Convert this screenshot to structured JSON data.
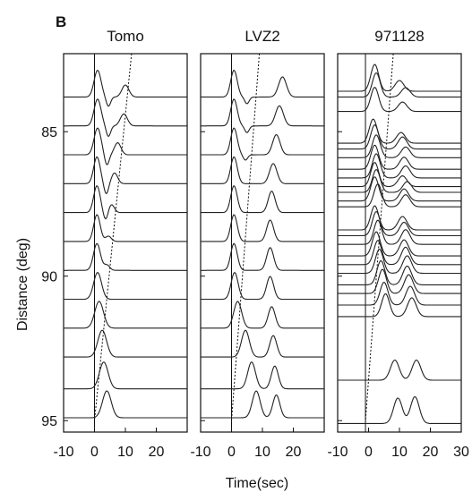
{
  "panel_label": "B",
  "chart_data": {
    "type": "line",
    "subtype": "seismogram record section",
    "xlabel": "Time(sec)",
    "ylabel": "Distance (deg)",
    "ylim": [
      95.4,
      82.3
    ],
    "y_ticks": [
      85,
      90,
      95
    ],
    "y_tick_labels": [
      "85",
      "90",
      "95"
    ],
    "panels": [
      {
        "title": "Tomo",
        "xlim": [
          -10,
          30
        ],
        "x_ticks": [
          -10,
          0,
          10,
          20
        ],
        "x_tick_labels": [
          "-10",
          "0",
          "10",
          "20"
        ],
        "reference_line_time": 0,
        "dotted_line": [
          {
            "distance": 82.3,
            "time": 12
          },
          {
            "distance": 95.0,
            "time": 0
          }
        ],
        "traces": [
          {
            "distance": 83.8,
            "pulses": [
              {
                "t": 1.0,
                "a": 1.0,
                "w": 1.6
              },
              {
                "t": 4.5,
                "a": -0.35,
                "w": 1.0
              },
              {
                "t": 10.0,
                "a": 0.45,
                "w": 1.6
              }
            ]
          },
          {
            "distance": 84.8,
            "pulses": [
              {
                "t": 1.0,
                "a": 1.0,
                "w": 1.6
              },
              {
                "t": 4.5,
                "a": -0.4,
                "w": 1.0
              },
              {
                "t": 9.5,
                "a": 0.45,
                "w": 1.6
              }
            ]
          },
          {
            "distance": 85.8,
            "pulses": [
              {
                "t": 1.0,
                "a": 1.0,
                "w": 1.6
              },
              {
                "t": 4.0,
                "a": -0.4,
                "w": 1.0
              },
              {
                "t": 7.5,
                "a": 0.45,
                "w": 1.5
              }
            ]
          },
          {
            "distance": 86.8,
            "pulses": [
              {
                "t": 0.8,
                "a": 1.0,
                "w": 1.5
              },
              {
                "t": 3.8,
                "a": -0.4,
                "w": 1.0
              },
              {
                "t": 6.5,
                "a": 0.4,
                "w": 1.4
              }
            ]
          },
          {
            "distance": 87.8,
            "pulses": [
              {
                "t": 0.8,
                "a": 1.0,
                "w": 1.5
              },
              {
                "t": 3.6,
                "a": -0.3,
                "w": 1.0
              },
              {
                "t": 5.5,
                "a": 0.3,
                "w": 1.3
              }
            ]
          },
          {
            "distance": 88.8,
            "pulses": [
              {
                "t": 0.8,
                "a": 1.0,
                "w": 1.5
              },
              {
                "t": 4.5,
                "a": 0.2,
                "w": 1.3
              }
            ]
          },
          {
            "distance": 89.8,
            "pulses": [
              {
                "t": 0.8,
                "a": 1.0,
                "w": 1.6
              },
              {
                "t": 4.0,
                "a": 0.2,
                "w": 1.3
              }
            ]
          },
          {
            "distance": 90.8,
            "pulses": [
              {
                "t": 1.0,
                "a": 1.0,
                "w": 1.8
              }
            ]
          },
          {
            "distance": 91.8,
            "pulses": [
              {
                "t": 1.5,
                "a": 1.0,
                "w": 2.0
              }
            ]
          },
          {
            "distance": 92.8,
            "pulses": [
              {
                "t": 2.5,
                "a": 1.0,
                "w": 2.0
              }
            ]
          },
          {
            "distance": 93.9,
            "pulses": [
              {
                "t": 3.0,
                "a": 1.0,
                "w": 2.0
              }
            ]
          },
          {
            "distance": 94.9,
            "pulses": [
              {
                "t": 4.0,
                "a": 1.0,
                "w": 2.0
              }
            ]
          }
        ]
      },
      {
        "title": "LVZ2",
        "xlim": [
          -10,
          30
        ],
        "x_ticks": [
          -10,
          0,
          10,
          20
        ],
        "x_tick_labels": [
          "-10",
          "0",
          "10",
          "20"
        ],
        "reference_line_time": 0,
        "dotted_line": [
          {
            "distance": 82.3,
            "time": 9
          },
          {
            "distance": 95.0,
            "time": 0
          }
        ],
        "traces": [
          {
            "distance": 83.8,
            "pulses": [
              {
                "t": 0.8,
                "a": 1.0,
                "w": 1.5
              },
              {
                "t": 5.0,
                "a": -0.25,
                "w": 1.0
              },
              {
                "t": 16.5,
                "a": 0.75,
                "w": 1.8
              }
            ]
          },
          {
            "distance": 84.8,
            "pulses": [
              {
                "t": 0.8,
                "a": 1.0,
                "w": 1.5
              },
              {
                "t": 5.0,
                "a": -0.25,
                "w": 1.0
              },
              {
                "t": 15.5,
                "a": 0.75,
                "w": 1.8
              }
            ]
          },
          {
            "distance": 85.8,
            "pulses": [
              {
                "t": 0.8,
                "a": 1.0,
                "w": 1.5
              },
              {
                "t": 4.5,
                "a": -0.2,
                "w": 1.0
              },
              {
                "t": 14.5,
                "a": 0.75,
                "w": 1.7
              }
            ]
          },
          {
            "distance": 86.8,
            "pulses": [
              {
                "t": 0.8,
                "a": 1.0,
                "w": 1.5
              },
              {
                "t": 13.5,
                "a": 0.75,
                "w": 1.7
              }
            ]
          },
          {
            "distance": 87.8,
            "pulses": [
              {
                "t": 0.8,
                "a": 1.0,
                "w": 1.5
              },
              {
                "t": 13.0,
                "a": 0.8,
                "w": 1.6
              }
            ]
          },
          {
            "distance": 88.8,
            "pulses": [
              {
                "t": 0.8,
                "a": 1.0,
                "w": 1.5
              },
              {
                "t": 12.5,
                "a": 0.8,
                "w": 1.6
              }
            ]
          },
          {
            "distance": 89.8,
            "pulses": [
              {
                "t": 0.8,
                "a": 1.0,
                "w": 1.5
              },
              {
                "t": 12.5,
                "a": 0.85,
                "w": 1.6
              }
            ]
          },
          {
            "distance": 90.8,
            "pulses": [
              {
                "t": 1.0,
                "a": 1.0,
                "w": 1.6
              },
              {
                "t": 12.5,
                "a": 0.85,
                "w": 1.6
              }
            ]
          },
          {
            "distance": 91.8,
            "pulses": [
              {
                "t": 2.0,
                "a": 1.0,
                "w": 1.8
              },
              {
                "t": 13.0,
                "a": 0.8,
                "w": 1.6
              }
            ]
          },
          {
            "distance": 92.8,
            "pulses": [
              {
                "t": 4.5,
                "a": 1.0,
                "w": 1.8
              },
              {
                "t": 13.5,
                "a": 0.8,
                "w": 1.6
              }
            ]
          },
          {
            "distance": 93.9,
            "pulses": [
              {
                "t": 6.5,
                "a": 1.0,
                "w": 1.8
              },
              {
                "t": 14.0,
                "a": 0.85,
                "w": 1.6
              }
            ]
          },
          {
            "distance": 94.9,
            "pulses": [
              {
                "t": 8.0,
                "a": 1.0,
                "w": 1.8
              },
              {
                "t": 14.5,
                "a": 0.85,
                "w": 1.6
              }
            ]
          }
        ]
      },
      {
        "title": "971128",
        "xlim": [
          -10,
          30
        ],
        "x_ticks": [
          -10,
          0,
          10,
          20,
          30
        ],
        "x_tick_labels": [
          "-10",
          "0",
          "10",
          "20",
          "30"
        ],
        "reference_line_time": -1,
        "dotted_line": [
          {
            "distance": 82.3,
            "time": 8
          },
          {
            "distance": 95.0,
            "time": -1
          }
        ],
        "traces": [
          {
            "distance": 83.6,
            "pulses": [
              {
                "t": 2.0,
                "a": 1.0,
                "w": 1.8
              },
              {
                "t": 10.0,
                "a": 0.4,
                "w": 2.0
              }
            ]
          },
          {
            "distance": 83.8,
            "pulses": [
              {
                "t": 2.5,
                "a": 0.9,
                "w": 1.8
              },
              {
                "t": 12.0,
                "a": 0.35,
                "w": 2.0
              }
            ]
          },
          {
            "distance": 84.3,
            "pulses": [
              {
                "t": 2.0,
                "a": 0.9,
                "w": 1.8
              },
              {
                "t": 11.0,
                "a": 0.35,
                "w": 2.0
              }
            ]
          },
          {
            "distance": 85.4,
            "pulses": [
              {
                "t": 1.5,
                "a": 0.9,
                "w": 1.8
              },
              {
                "t": 10.5,
                "a": 0.4,
                "w": 2.0
              }
            ]
          },
          {
            "distance": 85.6,
            "pulses": [
              {
                "t": 2.0,
                "a": 0.9,
                "w": 1.8
              },
              {
                "t": 11.0,
                "a": 0.45,
                "w": 2.0
              }
            ]
          },
          {
            "distance": 85.9,
            "pulses": [
              {
                "t": 2.5,
                "a": 0.85,
                "w": 1.8
              },
              {
                "t": 12.0,
                "a": 0.4,
                "w": 2.0
              }
            ]
          },
          {
            "distance": 86.3,
            "pulses": [
              {
                "t": 2.0,
                "a": 0.9,
                "w": 1.8
              },
              {
                "t": 11.5,
                "a": 0.45,
                "w": 2.0
              }
            ]
          },
          {
            "distance": 86.6,
            "pulses": [
              {
                "t": 2.5,
                "a": 0.9,
                "w": 1.8
              },
              {
                "t": 12.0,
                "a": 0.45,
                "w": 2.0
              }
            ]
          },
          {
            "distance": 86.9,
            "pulses": [
              {
                "t": 2.0,
                "a": 0.9,
                "w": 1.8
              },
              {
                "t": 11.0,
                "a": 0.4,
                "w": 2.0
              }
            ]
          },
          {
            "distance": 87.1,
            "pulses": [
              {
                "t": 2.5,
                "a": 0.85,
                "w": 1.8
              },
              {
                "t": 12.5,
                "a": 0.4,
                "w": 2.0
              }
            ]
          },
          {
            "distance": 87.4,
            "pulses": [
              {
                "t": 2.0,
                "a": 0.9,
                "w": 1.8
              },
              {
                "t": 11.5,
                "a": 0.45,
                "w": 2.0
              }
            ]
          },
          {
            "distance": 87.6,
            "pulses": [
              {
                "t": 3.0,
                "a": 0.85,
                "w": 1.8
              },
              {
                "t": 12.0,
                "a": 0.45,
                "w": 2.0
              }
            ]
          },
          {
            "distance": 88.4,
            "pulses": [
              {
                "t": 2.0,
                "a": 0.9,
                "w": 1.8
              },
              {
                "t": 11.0,
                "a": 0.5,
                "w": 2.0
              }
            ]
          },
          {
            "distance": 88.6,
            "pulses": [
              {
                "t": 2.5,
                "a": 0.9,
                "w": 1.8
              },
              {
                "t": 11.5,
                "a": 0.5,
                "w": 2.0
              }
            ]
          },
          {
            "distance": 88.9,
            "pulses": [
              {
                "t": 3.0,
                "a": 0.9,
                "w": 1.8
              },
              {
                "t": 12.0,
                "a": 0.55,
                "w": 2.0
              }
            ]
          },
          {
            "distance": 89.3,
            "pulses": [
              {
                "t": 2.5,
                "a": 0.9,
                "w": 1.8
              },
              {
                "t": 11.5,
                "a": 0.6,
                "w": 2.0
              }
            ]
          },
          {
            "distance": 89.6,
            "pulses": [
              {
                "t": 3.0,
                "a": 0.9,
                "w": 1.8
              },
              {
                "t": 12.0,
                "a": 0.65,
                "w": 2.0
              }
            ]
          },
          {
            "distance": 89.9,
            "pulses": [
              {
                "t": 3.5,
                "a": 0.9,
                "w": 1.8
              },
              {
                "t": 12.5,
                "a": 0.65,
                "w": 2.0
              }
            ]
          },
          {
            "distance": 90.3,
            "pulses": [
              {
                "t": 4.0,
                "a": 0.9,
                "w": 1.8
              },
              {
                "t": 12.5,
                "a": 0.7,
                "w": 2.0
              }
            ]
          },
          {
            "distance": 90.6,
            "pulses": [
              {
                "t": 4.5,
                "a": 0.9,
                "w": 1.8
              },
              {
                "t": 13.0,
                "a": 0.7,
                "w": 2.0
              }
            ]
          },
          {
            "distance": 91.0,
            "pulses": [
              {
                "t": 5.0,
                "a": 0.85,
                "w": 1.8
              },
              {
                "t": 13.5,
                "a": 0.7,
                "w": 2.0
              }
            ]
          },
          {
            "distance": 91.4,
            "pulses": [
              {
                "t": 5.5,
                "a": 0.85,
                "w": 1.8
              },
              {
                "t": 14.0,
                "a": 0.7,
                "w": 2.0
              }
            ]
          },
          {
            "distance": 93.6,
            "pulses": [
              {
                "t": 8.5,
                "a": 0.75,
                "w": 2.0
              },
              {
                "t": 15.5,
                "a": 0.75,
                "w": 2.0
              }
            ]
          },
          {
            "distance": 95.1,
            "pulses": [
              {
                "t": 9.5,
                "a": 0.95,
                "w": 2.0
              },
              {
                "t": 15.0,
                "a": 1.0,
                "w": 2.0
              }
            ]
          }
        ]
      }
    ]
  }
}
